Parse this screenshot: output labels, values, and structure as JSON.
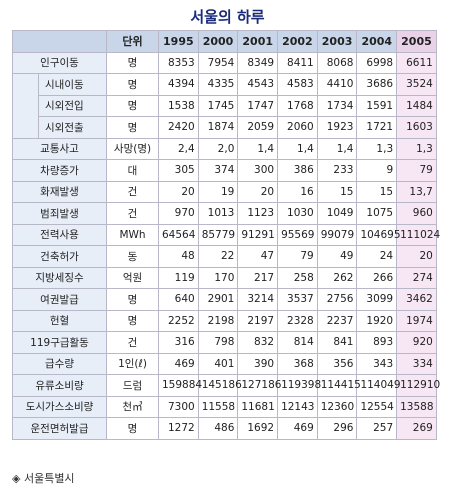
{
  "title": "서울의 하루",
  "table": {
    "header": [
      "단위",
      "1995",
      "2000",
      "2001",
      "2002",
      "2003",
      "2004",
      "2005"
    ],
    "rows": [
      {
        "label": "인구이동",
        "unit": "명",
        "values": [
          "8353",
          "7954",
          "8349",
          "8411",
          "8068",
          "6998",
          "6611"
        ]
      },
      {
        "label": "시내이동",
        "unit": "명",
        "values": [
          "4394",
          "4335",
          "4543",
          "4583",
          "4410",
          "3686",
          "3524"
        ],
        "sub": true
      },
      {
        "label": "시외전입",
        "unit": "명",
        "values": [
          "1538",
          "1745",
          "1747",
          "1768",
          "1734",
          "1591",
          "1484"
        ],
        "sub": true
      },
      {
        "label": "시외전출",
        "unit": "명",
        "values": [
          "2420",
          "1874",
          "2059",
          "2060",
          "1923",
          "1721",
          "1603"
        ],
        "sub": true
      },
      {
        "label": "교통사고",
        "unit": "사망(명)",
        "values": [
          "2,4",
          "2,0",
          "1,4",
          "1,4",
          "1,4",
          "1,3",
          "1,3"
        ]
      },
      {
        "label": "차량증가",
        "unit": "대",
        "values": [
          "305",
          "374",
          "300",
          "386",
          "233",
          "9",
          "79"
        ]
      },
      {
        "label": "화재발생",
        "unit": "건",
        "values": [
          "20",
          "19",
          "20",
          "16",
          "15",
          "15",
          "13,7"
        ]
      },
      {
        "label": "범죄발생",
        "unit": "건",
        "values": [
          "970",
          "1013",
          "1123",
          "1030",
          "1049",
          "1075",
          "960"
        ]
      },
      {
        "label": "전력사용",
        "unit": "MWh",
        "values": [
          "64564",
          "85779",
          "91291",
          "95569",
          "99079",
          "104695",
          "111024"
        ]
      },
      {
        "label": "건축허가",
        "unit": "동",
        "values": [
          "48",
          "22",
          "47",
          "79",
          "49",
          "24",
          "20"
        ]
      },
      {
        "label": "지방세징수",
        "unit": "억원",
        "values": [
          "119",
          "170",
          "217",
          "258",
          "262",
          "266",
          "274"
        ]
      },
      {
        "label": "여권발급",
        "unit": "명",
        "values": [
          "640",
          "2901",
          "3214",
          "3537",
          "2756",
          "3099",
          "3462"
        ]
      },
      {
        "label": "헌혈",
        "unit": "명",
        "values": [
          "2252",
          "2198",
          "2197",
          "2328",
          "2237",
          "1920",
          "1974"
        ]
      },
      {
        "label": "119구급활동",
        "unit": "건",
        "values": [
          "316",
          "798",
          "832",
          "814",
          "841",
          "893",
          "920"
        ]
      },
      {
        "label": "급수량",
        "unit": "1인(ℓ)",
        "values": [
          "469",
          "401",
          "390",
          "368",
          "356",
          "343",
          "334"
        ]
      },
      {
        "label": "유류소비량",
        "unit": "드럼",
        "values": [
          "159884",
          "145186",
          "127186",
          "119398",
          "114415",
          "114049",
          "112910"
        ]
      },
      {
        "label": "도시가스소비량",
        "unit": "천㎥",
        "values": [
          "7300",
          "11558",
          "11681",
          "12143",
          "12360",
          "12554",
          "13588"
        ]
      },
      {
        "label": "운전면허발급",
        "unit": "명",
        "values": [
          "1272",
          "486",
          "1692",
          "469",
          "296",
          "257",
          "269"
        ]
      }
    ]
  },
  "footer": "◈ 서울특별시"
}
